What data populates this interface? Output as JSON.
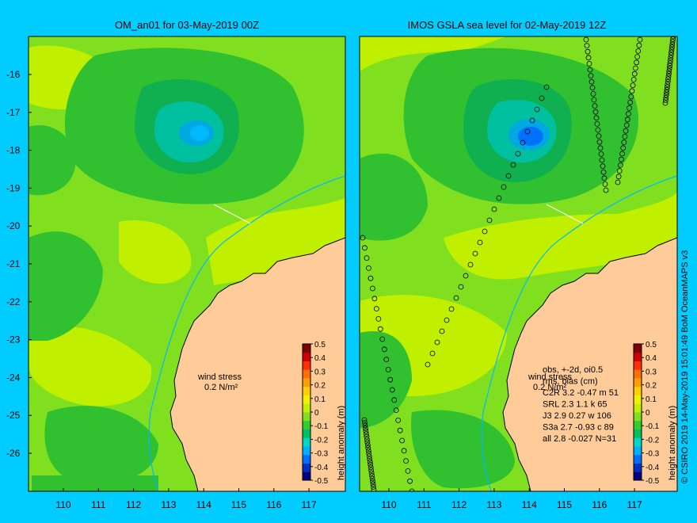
{
  "left_panel": {
    "title": "OM_an01 for 03-May-2019 00Z",
    "wind_label_line1": "wind stress",
    "wind_label_line2": "0.2 N/m²"
  },
  "right_panel": {
    "title": "IMOS GSLA sea level  for 02-May-2019 12Z",
    "wind_label_line1": "wind stress",
    "wind_label_line2": "0.2 N/m²",
    "stats": [
      "obs, +-2d, oi0.5",
      "rms, bias (cm)",
      "C2R  3.2 -0.47 m 51",
      "SRL   2.3 1.1 k 65",
      "J3    2.9 0.27 w 106",
      "S3a   2.7 -0.93 c 89",
      "all   2.8 -0.027 N=31"
    ]
  },
  "colorbar": {
    "label": "height anomaly (m)",
    "ticks": [
      "0.5",
      "0.4",
      "0.3",
      "0.2",
      "0.1",
      "0",
      "-0.1",
      "-0.2",
      "-0.3",
      "-0.4",
      "-0.5"
    ],
    "colors": [
      "#000080",
      "#0030c0",
      "#0070ff",
      "#00b0ff",
      "#00d8c8",
      "#00c060",
      "#30d030",
      "#80e020",
      "#c0f000",
      "#f0f000",
      "#ffd000",
      "#ffa000",
      "#ff7000",
      "#ff3000",
      "#d00000",
      "#800000"
    ]
  },
  "axes": {
    "x_ticks": [
      "110",
      "111",
      "112",
      "113",
      "114",
      "115",
      "116",
      "117"
    ],
    "y_ticks": [
      "-16",
      "-17",
      "-18",
      "-19",
      "-20",
      "-21",
      "-22",
      "-23",
      "-24",
      "-25",
      "-26"
    ]
  },
  "credit": "© CSIRO 2019   14-May-2019 15:01:49 BoM OceanMAPS v3",
  "colors": {
    "background": "#00ccff",
    "land": "#ffcc99",
    "sea_base": "#80e020",
    "positive": "#c0f000",
    "negative": "#30c030",
    "strong_negative": "#00a8e0",
    "coast_200m": "#00b8ff"
  }
}
